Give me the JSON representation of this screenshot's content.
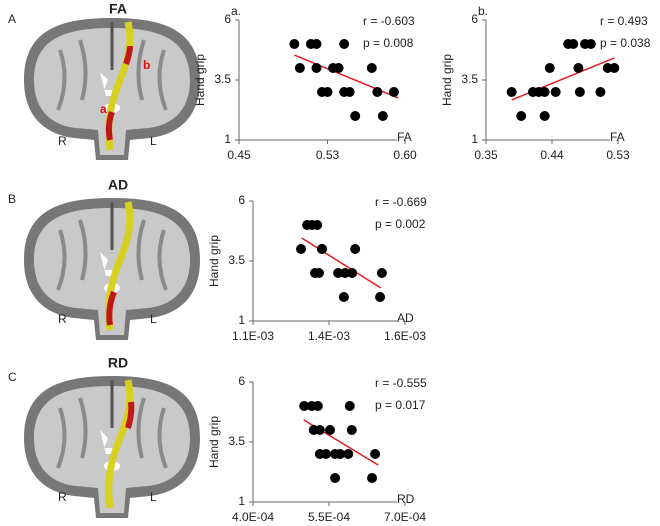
{
  "panels": [
    {
      "letter": "A",
      "title": "FA",
      "left": "R",
      "right": "L",
      "tract_labels": [
        "a",
        "b"
      ]
    },
    {
      "letter": "B",
      "title": "AD",
      "left": "R",
      "right": "L"
    },
    {
      "letter": "C",
      "title": "RD",
      "left": "R",
      "right": "L"
    }
  ],
  "chart_data": [
    {
      "type": "scatter",
      "panel_label": "a.",
      "y_label": "Hand grip",
      "x_label": "FA",
      "annotations": [
        "r = -0.603",
        "p = 0.008"
      ],
      "color": "#000000",
      "x": [
        0.5,
        0.505,
        0.515,
        0.52,
        0.52,
        0.525,
        0.53,
        0.535,
        0.54,
        0.545,
        0.545,
        0.55,
        0.555,
        0.57,
        0.575,
        0.58,
        0.59
      ],
      "values": [
        5,
        4,
        5,
        5,
        4,
        3,
        3,
        4,
        4,
        5,
        3,
        3,
        2,
        4,
        3,
        2,
        3
      ],
      "trendline": {
        "color": "#e41a1c",
        "x": [
          0.5,
          0.594
        ],
        "y": [
          4.54,
          2.75
        ]
      },
      "xlim": [
        0.45,
        0.6
      ],
      "xticks": [
        0.45,
        0.53,
        {
          "value": 0.6,
          "label": "0.60"
        }
      ],
      "ylim": [
        1,
        6
      ],
      "yticks": [
        1,
        3.5,
        6
      ]
    },
    {
      "type": "scatter",
      "panel_label": "b.",
      "y_label": "Hand grip",
      "x_label": "FA",
      "annotations": [
        "r = 0.493",
        "p = 0.038"
      ],
      "color": "#000000",
      "x": [
        0.385,
        0.398,
        0.414,
        0.422,
        0.43,
        0.43,
        0.437,
        0.445,
        0.462,
        0.469,
        0.476,
        0.478,
        0.485,
        0.493,
        0.506,
        0.516,
        0.525
      ],
      "values": [
        3,
        2,
        3,
        3,
        2,
        3,
        4,
        3,
        5,
        5,
        4,
        3,
        5,
        5,
        3,
        4,
        4
      ],
      "trendline": {
        "color": "#e41a1c",
        "x": [
          0.385,
          0.525
        ],
        "y": [
          2.67,
          4.42
        ]
      },
      "xlim": [
        0.35,
        0.53
      ],
      "xticks": [
        0.35,
        0.44,
        0.53
      ],
      "ylim": [
        1,
        6
      ],
      "yticks": [
        1,
        3.5,
        6
      ]
    },
    {
      "type": "scatter",
      "y_label": "Hand grip",
      "x_label": "AD",
      "annotations": [
        "r = -0.669",
        "p = 0.002"
      ],
      "color": "#000000",
      "x": [
        0.001258,
        0.001278,
        0.001294,
        0.001311,
        0.001327,
        0.001327,
        0.001304,
        0.001317,
        0.00138,
        0.001403,
        0.001399,
        0.001426,
        0.001436,
        0.001518,
        0.001524
      ],
      "values": [
        4,
        5,
        5,
        5,
        4,
        4,
        3,
        3,
        3,
        3,
        2,
        3,
        4,
        2,
        3
      ],
      "trendline": {
        "color": "#e41a1c",
        "x": [
          0.00126,
          0.00152
        ],
        "y": [
          4.46,
          2.38
        ]
      },
      "xlim": [
        0.0011,
        0.0016
      ],
      "xticks": [
        {
          "value": 0.0011,
          "label": "1.1E-03"
        },
        {
          "value": 0.00135,
          "label": "1.4E-03"
        },
        {
          "value": 0.0016,
          "label": "1.6E-03"
        }
      ],
      "ylim": [
        1,
        6
      ],
      "yticks": [
        1,
        3.5,
        6
      ]
    },
    {
      "type": "scatter",
      "y_label": "Hand grip",
      "x_label": "RD",
      "annotations": [
        "r = -0.555",
        "p = 0.017"
      ],
      "color": "#000000",
      "x": [
        0.000501,
        0.000516,
        0.000528,
        0.00052,
        0.000532,
        0.000552,
        0.000544,
        0.000532,
        0.000562,
        0.000572,
        0.000562,
        0.000588,
        0.000591,
        0.000595,
        0.000635,
        0.000641
      ],
      "values": [
        5,
        5,
        5,
        4,
        4,
        4,
        3,
        3,
        3,
        3,
        2,
        3,
        5,
        4,
        2,
        3
      ],
      "trendline": {
        "color": "#e41a1c",
        "x": [
          0.0005,
          0.000647
        ],
        "y": [
          4.42,
          2.54
        ]
      },
      "xlim": [
        0.0004,
        0.0007
      ],
      "xticks": [
        {
          "value": 0.0004,
          "label": "4.0E-04"
        },
        {
          "value": 0.00055,
          "label": "5.5E-04"
        },
        {
          "value": 0.0007,
          "label": "7.0E-04"
        }
      ],
      "ylim": [
        1,
        6
      ],
      "yticks": [
        1,
        3.5,
        6
      ]
    }
  ]
}
